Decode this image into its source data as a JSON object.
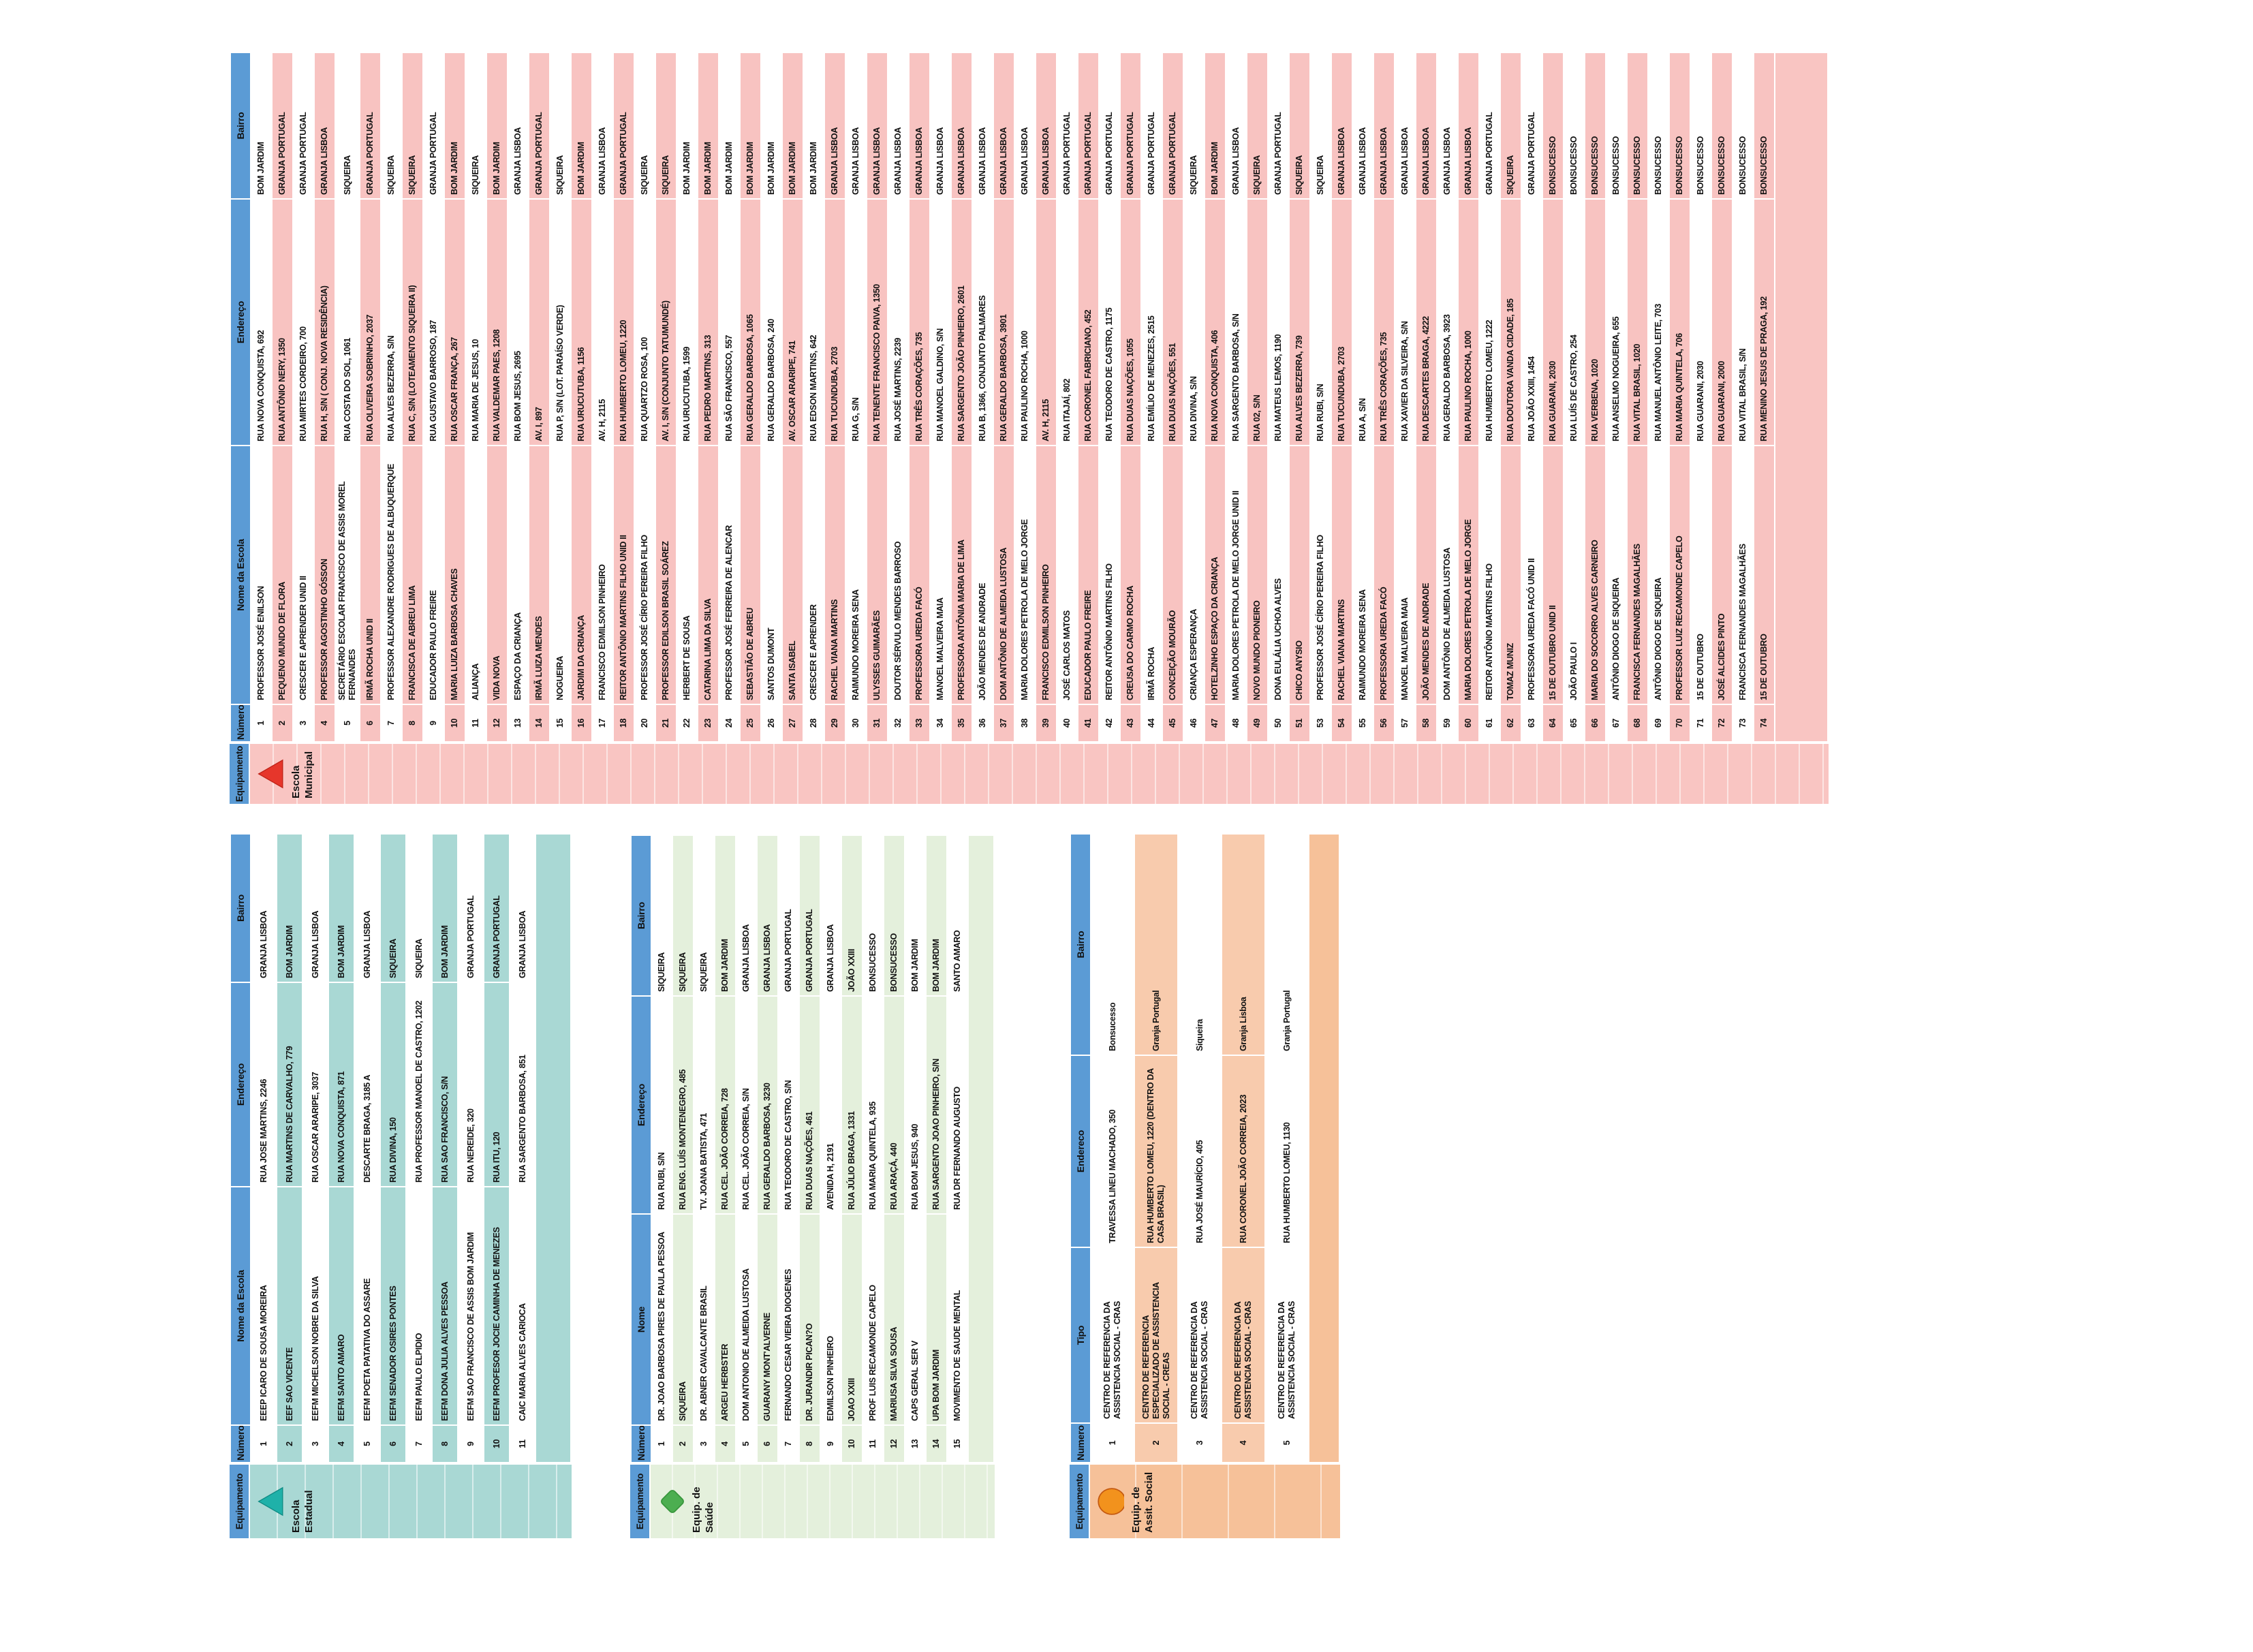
{
  "tables": [
    {
      "id": "escola_municipal",
      "category": "Escola Municipal",
      "icon": {
        "shape": "triangle-up",
        "name": "red-triangle-icon",
        "fill": "#E6362B",
        "stroke": "#BF2318"
      },
      "colors": {
        "header_bg": "#5B9BD5",
        "alt_row": "#F8C3C1",
        "band": "#F9C5C2"
      },
      "headers": [
        "Equipamento",
        "Número",
        "Nome da Escola",
        "Endereço",
        "Bairro"
      ],
      "rows": [
        [
          "1",
          "PROFESSOR JOSÉ ENILSON",
          "RUA NOVA CONQUISTA, 692",
          "BOM JARDIM"
        ],
        [
          "2",
          "PEQUENO MUNDO DE FLORA",
          "RUA ANTÔNIO NERY, 1350",
          "GRANJA PORTUGAL"
        ],
        [
          "3",
          "CRESCER E APRENDER UNID II",
          "RUA MIRTES CORDEIRO, 700",
          "GRANJA PORTUGAL"
        ],
        [
          "4",
          "PROFESSOR AGOSTINHO GÓSSON",
          "RUA H, S/N ( CONJ. NOVA RESIDÊNCIA)",
          "GRANJA LISBOA"
        ],
        [
          "5",
          "SECRETÁRIO ESCOLAR FRANCISCO DE ASSIS MOREL FERNANDES",
          "RUA COSTA DO SOL, 1061",
          "SIQUEIRA"
        ],
        [
          "6",
          "IRMÃ ROCHA UNID II",
          "RUA OLIVEIRA SOBRINHO, 2037",
          "GRANJA PORTUGAL"
        ],
        [
          "7",
          "PROFESSOR ALEXANDRE RODRIGUES DE ALBUQUERQUE",
          "RUA ALVES BEZERRA, S/N",
          "SIQUEIRA"
        ],
        [
          "8",
          "FRANCISCA DE ABREU LIMA",
          "RUA C, S/N (LOTEAMENTO SIQUEIRA II)",
          "SIQUEIRA"
        ],
        [
          "9",
          "EDUCADOR PAULO FREIRE",
          "RUA GUSTAVO BARROSO, 187",
          "GRANJA PORTUGAL"
        ],
        [
          "10",
          "MARIA LUIZA BARBOSA CHAVES",
          "RUA OSCAR FRANÇA, 267",
          "BOM JARDIM"
        ],
        [
          "11",
          "ALIANÇA",
          "RUA MARIA DE JESUS, 10",
          "SIQUEIRA"
        ],
        [
          "12",
          "VIDA NOVA",
          "RUA VALDEMAR PAES, 1208",
          "BOM JARDIM"
        ],
        [
          "13",
          "ESPAÇO DA CRIANÇA",
          "RUA BOM JESUS, 2695",
          "GRANJA LISBOA"
        ],
        [
          "14",
          "IRMÃ LUIZA MENDES",
          "AV. I, 897",
          "GRANJA PORTUGAL"
        ],
        [
          "15",
          "NOGUEIRA",
          "RUA P, S/N (LOT. PARAÍSO VERDE)",
          "SIQUEIRA"
        ],
        [
          "16",
          "JARDIM DA CRIANÇA",
          "RUA URUCUTUBA, 1156",
          "BOM JARDIM"
        ],
        [
          "17",
          "FRANCISCO EDMILSON PINHEIRO",
          "AV. H, 2115",
          "GRANJA LISBOA"
        ],
        [
          "18",
          "REITOR ANTÔNIO MARTINS FILHO UNID II",
          "RUA HUMBERTO LOMEU, 1220",
          "GRANJA PORTUGAL"
        ],
        [
          "20",
          "PROFESSOR JOSÉ CÍRIO PEREIRA FILHO",
          "RUA QUARTZO ROSA, 100",
          "SIQUEIRA"
        ],
        [
          "21",
          "PROFESSOR EDILSON BRASIL SOÁREZ",
          "AV. I, S/N (CONJUNTO TATUMUNDÉ)",
          "SIQUEIRA"
        ],
        [
          "22",
          "HERBERT DE SOUSA",
          "RUA URUCUTUBA, 1599",
          "BOM JARDIM"
        ],
        [
          "23",
          "CATARINA LIMA DA SILVA",
          "RUA PEDRO MARTINS, 313",
          "BOM JARDIM"
        ],
        [
          "24",
          "PROFESSOR JOSÉ FERREIRA DE ALENCAR",
          "RUA SÃO FRANCISCO, 557",
          "BOM JARDIM"
        ],
        [
          "25",
          "SEBASTIÃO DE ABREU",
          "RUA GERALDO BARBOSA, 1065",
          "BOM JARDIM"
        ],
        [
          "26",
          "SANTOS DUMONT",
          "RUA GERALDO BARBOSA, 240",
          "BOM JARDIM"
        ],
        [
          "27",
          "SANTA ISABEL",
          "AV. OSCAR ARARIPE, 741",
          "BOM JARDIM"
        ],
        [
          "28",
          "CRESCER E APRENDER",
          "RUA EDSON MARTINS, 642",
          "BOM JARDIM"
        ],
        [
          "29",
          "RACHEL VIANA MARTINS",
          "RUA TUCUNDUBA, 2703",
          "GRANJA LISBOA"
        ],
        [
          "30",
          "RAIMUNDO MOREIRA SENA",
          "RUA G, S/N",
          "GRANJA LISBOA"
        ],
        [
          "31",
          "ULYSSES GUIMARÃES",
          "RUA TENENTE FRANCISCO PAIVA, 1350",
          "GRANJA LISBOA"
        ],
        [
          "32",
          "DOUTOR SÉRVULO MENDES BARROSO",
          "RUA JOSÉ MARTINS, 2239",
          "GRANJA LISBOA"
        ],
        [
          "33",
          "PROFESSORA UREDA FACÓ",
          "RUA TRÊS CORAÇÕES, 735",
          "GRANJA LISBOA"
        ],
        [
          "34",
          "MANOEL MALVEIRA MAIA",
          "RUA MANOEL GALDINO, S/N",
          "GRANJA LISBOA"
        ],
        [
          "35",
          "PROFESSORA ANTÔNIA MARIA DE LIMA",
          "RUA SARGENTO JOÃO PINHEIRO, 2601",
          "GRANJA LISBOA"
        ],
        [
          "36",
          "JOÃO MENDES DE ANDRADE",
          "RUA B, 1366, CONJUNTO PALMARES",
          "GRANJA LISBOA"
        ],
        [
          "37",
          "DOM ANTÔNIO DE ALMEIDA LUSTOSA",
          "RUA GERALDO BARBOSA, 3901",
          "GRANJA LISBOA"
        ],
        [
          "38",
          "MARIA DOLORES PETROLA DE MELO JORGE",
          "RUA PAULINO ROCHA, 1000",
          "GRANJA LISBOA"
        ],
        [
          "39",
          "FRANCISCO EDMILSON PINHEIRO",
          "AV. H, 2115",
          "GRANJA LISBOA"
        ],
        [
          "40",
          "JOSÉ CARLOS MATOS",
          "RUA ITAJAÍ, 802",
          "GRANJA PORTUGAL"
        ],
        [
          "41",
          "EDUCADOR PAULO FREIRE",
          "RUA CORONEL FABRICIANO, 452",
          "GRANJA PORTUGAL"
        ],
        [
          "42",
          "REITOR ANTÔNIO MARTINS FILHO",
          "RUA TEODORO DE CASTRO, 1175",
          "GRANJA PORTUGAL"
        ],
        [
          "43",
          "CREUSA DO CARMO ROCHA",
          "RUA DUAS NAÇÕES, 1055",
          "GRANJA PORTUGAL"
        ],
        [
          "44",
          "IRMÃ ROCHA",
          "RUA EMÍLIO DE MENEZES, 2515",
          "GRANJA PORTUGAL"
        ],
        [
          "45",
          "CONCEIÇÃO MOURÃO",
          "RUA DUAS NAÇÕES, 551",
          "GRANJA PORTUGAL"
        ],
        [
          "46",
          "CRIANÇA ESPERANÇA",
          "RUA DIVINA, S/N",
          "SIQUEIRA"
        ],
        [
          "47",
          "HOTELZINHO ESPAÇO DA CRIANÇA",
          "RUA NOVA CONQUISTA, 406",
          "BOM JARDIM"
        ],
        [
          "48",
          "MARIA DOLORES PETROLA DE MELO JORGE UNID II",
          "RUA SARGENTO BARBOSA, S/N",
          "GRANJA LISBOA"
        ],
        [
          "49",
          "NOVO MUNDO PIONEIRO",
          "RUA 02, S/N",
          "SIQUEIRA"
        ],
        [
          "50",
          "DONA EULÁLIA UCHOA ALVES",
          "RUA MATEUS LEMOS, 1190",
          "GRANJA PORTUGAL"
        ],
        [
          "51",
          "CHICO ANYSIO",
          "RUA ALVES BEZERRA, 739",
          "SIQUEIRA"
        ],
        [
          "53",
          "PROFESSOR JOSÉ CÍRIO PEREIRA FILHO",
          "RUA RUBI, S/N",
          "SIQUEIRA"
        ],
        [
          "54",
          "RACHEL VIANA MARTINS",
          "RUA TUCUNDUBA, 2703",
          "GRANJA LISBOA"
        ],
        [
          "55",
          "RAIMUNDO MOREIRA SENA",
          "RUA A, S/N",
          "GRANJA LISBOA"
        ],
        [
          "56",
          "PROFESSORA UREDA FACÓ",
          "RUA TRÊS CORAÇÕES, 735",
          "GRANJA LISBOA"
        ],
        [
          "57",
          "MANOEL MALVEIRA MAIA",
          "RUA XAVIER DA SILVEIRA, S/N",
          "GRANJA LISBOA"
        ],
        [
          "58",
          "JOÃO MENDES DE ANDRADE",
          "RUA DESCARTES BRAGA, 4222",
          "GRANJA LISBOA"
        ],
        [
          "59",
          "DOM ANTÔNIO DE ALMEIDA LUSTOSA",
          "RUA GERALDO BARBOSA, 3923",
          "GRANJA LISBOA"
        ],
        [
          "60",
          "MARIA DOLORES PETROLA DE MELO JORGE",
          "RUA PAULINO ROCHA, 1000",
          "GRANJA LISBOA"
        ],
        [
          "61",
          "REITOR ANTÔNIO MARTINS FILHO",
          "RUA HUMBERTO LOMEU, 1222",
          "GRANJA PORTUGAL"
        ],
        [
          "62",
          "TOMAZ MUNIZ",
          "RUA DOUTORA VANDA CIDADE, 185",
          "SIQUEIRA"
        ],
        [
          "63",
          "PROFESSORA UREDA FACÓ UNID II",
          "RUA JOÃO XXIII, 1454",
          "GRANJA PORTUGAL"
        ],
        [
          "64",
          "15 DE OUTUBRO UNID II",
          "RUA GUARANI, 2030",
          "BONSUCESSO"
        ],
        [
          "65",
          "JOÃO PAULO I",
          "RUA LUÍS DE CASTRO, 254",
          "BONSUCESSO"
        ],
        [
          "66",
          "MARIA DO SOCORRO ALVES CARNEIRO",
          "RUA VERBENA, 1020",
          "BONSUCESSO"
        ],
        [
          "67",
          "ANTÔNIO DIOGO DE SIQUEIRA",
          "RUA ANSELMO NOGUEIRA, 655",
          "BONSUCESSO"
        ],
        [
          "68",
          "FRANCISCA FERNANDES MAGALHÃES",
          "RUA VITAL BRASIL, 1020",
          "BONSUCESSO"
        ],
        [
          "69",
          "ANTÔNIO DIOGO DE SIQUEIRA",
          "RUA MANUEL ANTÔNIO LEITE, 703",
          "BONSUCESSO"
        ],
        [
          "70",
          "PROFESSOR LUIZ RECAMONDE CAPELO",
          "RUA MARIA QUINTELA, 706",
          "BONSUCESSO"
        ],
        [
          "71",
          "15 DE OUTUBRO",
          "RUA GUARANI, 2030",
          "BONSUCESSO"
        ],
        [
          "72",
          "JOSÉ ALCIDES PINTO",
          "RUA GUARANI, 2000",
          "BONSUCESSO"
        ],
        [
          "73",
          "FRANCISCA FERNANDES MAGALHÃES",
          "RUA VITAL BRASIL, S/N",
          "BONSUCESSO"
        ],
        [
          "74",
          "15 DE OUTUBRO",
          "RUA MENINO JESUS DE PRAGA, 192",
          "BONSUCESSO"
        ]
      ]
    },
    {
      "id": "escola_estadual",
      "category": "Escola Estadual",
      "icon": {
        "shape": "triangle-up",
        "name": "teal-triangle-icon",
        "fill": "#1FB1A9",
        "stroke": "#0F8B84"
      },
      "colors": {
        "header_bg": "#5B9BD5",
        "alt_row": "#A9D8D4",
        "band": "#A9D8D4"
      },
      "headers": [
        "Equipamento",
        "Número",
        "Nome da Escola",
        "Endereço",
        "Bairro"
      ],
      "rows": [
        [
          "1",
          "EEEP ICARO DE SOUSA MOREIRA",
          "RUA JOSE MARTINS, 2246",
          "GRANJA LISBOA"
        ],
        [
          "2",
          "EEF SAO VICENTE",
          "RUA MARTINS DE CARVALHO, 779",
          "BOM JARDIM"
        ],
        [
          "3",
          "EEFM MICHELSON NOBRE DA SILVA",
          "RUA OSCAR ARARIPE, 3037",
          "GRANJA LISBOA"
        ],
        [
          "4",
          "EEFM SANTO AMARO",
          "RUA NOVA CONQUISTA, 871",
          "BOM JARDIM"
        ],
        [
          "5",
          "EEFM POETA PATATIVA DO ASSARE",
          "DESCARTE BRAGA, 3185 A",
          "GRANJA LISBOA"
        ],
        [
          "6",
          "EEFM SENADOR OSIRES PONTES",
          "RUA DIVINA, 150",
          "SIQUEIRA"
        ],
        [
          "7",
          "EEFM PAULO ELPIDIO",
          "RUA PROFESSOR MANOEL DE CASTRO, 1202",
          "SIQUEIRA"
        ],
        [
          "8",
          "EEFM DONA JULIA ALVES PESSOA",
          "RUA SAO FRANCISCO, S/N",
          "BOM JARDIM"
        ],
        [
          "9",
          "EEFM SAO FRANCISCO DE ASSIS BOM JARDIM",
          "RUA NEREIDE, 320",
          "GRANJA PORTUGAL"
        ],
        [
          "10",
          "EEFM PROFESOR JOCIE CAMINHA DE MENEZES",
          "RUA ITU, 120",
          "GRANJA PORTUGAL"
        ],
        [
          "11",
          "CAIC MARIA ALVES CARIOCA",
          "RUA SARGENTO BARBOSA, 851",
          "GRANJA LISBOA"
        ]
      ]
    },
    {
      "id": "equip_saude",
      "category": "Equip. de Saúde",
      "icon": {
        "shape": "diamond",
        "name": "green-diamond-icon",
        "fill": "#4CAE50",
        "stroke": "#38963C"
      },
      "colors": {
        "header_bg": "#5B9BD5",
        "alt_row": "#E4F0DC",
        "band": "#E4F0DC"
      },
      "headers": [
        "Equipamento",
        "Número",
        "Nome",
        "Endereço",
        "Bairro"
      ],
      "rows": [
        [
          "1",
          "DR. JOAO BARBOSA PIRES DE PAULA PESSOA",
          "RUA RUBI, S/N",
          "SIQUEIRA"
        ],
        [
          "2",
          "SIQUEIRA",
          "RUA ENG. LUÍS MONTENEGRO, 485",
          "SIQUEIRA"
        ],
        [
          "3",
          "DR. ABNER CAVALCANTE BRASIL",
          "TV. JOANA BATISTA, 471",
          "SIQUEIRA"
        ],
        [
          "4",
          "ARGEU HERBSTER",
          "RUA CEL. JOÃO CORREIA, 728",
          "BOM JARDIM"
        ],
        [
          "5",
          "DOM ANTONIO DE ALMEIDA LUSTOSA",
          "RUA CEL. JOÃO CORREIA, S/N",
          "GRANJA LISBOA"
        ],
        [
          "6",
          "GUARANY MONT'ALVERNE",
          "RUA GERALDO BARBOSA, 3230",
          "GRANJA LISBOA"
        ],
        [
          "7",
          "FERNANDO CESAR VIEIRA DIOGENES",
          "RUA TEODORO DE CASTRO, S/N",
          "GRANJA PORTUGAL"
        ],
        [
          "8",
          "DR. JURANDIR PICAN?O",
          "RUA DUAS NAÇÕES, 461",
          "GRANJA PORTUGAL"
        ],
        [
          "9",
          "EDMILSON PINHEIRO",
          "AVENIDA H, 2191",
          "GRANJA LISBOA"
        ],
        [
          "10",
          "JOAO XXIII",
          "RUA JÚLIO BRAGA, 1331",
          "JOÃO XXIII"
        ],
        [
          "11",
          "PROF LUIS RECAMONDE CAPELO",
          "RUA MARIA QUINTELA, 935",
          "BONSUCESSO"
        ],
        [
          "12",
          "MARIUSA SILVA SOUSA",
          "RUA ARAÇÁ, 440",
          "BONSUCESSO"
        ],
        [
          "13",
          "CAPS GERAL SER V",
          "RUA BOM JESUS, 940",
          "BOM JARDIM"
        ],
        [
          "14",
          "UPA BOM JARDIM",
          "RUA SARGENTO JOAO PINHEIRO, S/N",
          "BOM JARDIM"
        ],
        [
          "15",
          "MOVIMENTO DE SAUDE MENTAL",
          "RUA DR FERNANDO AUGUSTO",
          "SANTO AMARO"
        ]
      ]
    },
    {
      "id": "equip_assist_social",
      "category": "Equip. de Assit. Social",
      "icon": {
        "shape": "ellipse",
        "name": "orange-ellipse-icon",
        "fill": "#F2921D",
        "stroke": "#C55A11"
      },
      "colors": {
        "header_bg": "#5B9BD5",
        "alt_row": "#F8CBAD",
        "band": "#F6C199"
      },
      "headers": [
        "Equipamento",
        "Numero",
        "Tipo",
        "Endereco",
        "Bairro"
      ],
      "rows": [
        [
          "1",
          "CENTRO DE REFERENCIA DA ASSISTENCIA SOCIAL - CRAS",
          "TRAVESSA LINEU MACHADO, 350",
          "Bonsucesso"
        ],
        [
          "2",
          "CENTRO DE REFERENCIA ESPECIALIZADO DE ASSISTENCIA SOCIAL - CREAS",
          "RUA HUMBERTO LOMEU, 1220 (DENTRO DA CASA BRASIL)",
          "Granja Portugal"
        ],
        [
          "3",
          "CENTRO DE REFERENCIA DA ASSISTENCIA SOCIAL - CRAS",
          "RUA JOSÉ MAURÍCIO, 405",
          "Siqueira"
        ],
        [
          "4",
          "CENTRO DE REFERENCIA DA ASSISTENCIA SOCIAL - CRAS",
          "RUA CORONEL JOÃO CORREIA, 2023",
          "Granja Lisboa"
        ],
        [
          "5",
          "CENTRO DE REFERENCIA DA ASSISTENCIA SOCIAL - CRAS",
          "RUA HUMBERTO LOMEU, 1130",
          "Granja Portugal"
        ]
      ]
    }
  ]
}
